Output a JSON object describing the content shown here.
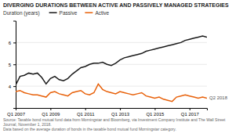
{
  "chart_data": {
    "type": "line",
    "title": "DIVERGING DURATIONS BETWEEN ACTIVE AND PASSIVELY MANAGED STRATEGIES",
    "ylabel": "Duration (years)",
    "annotation": "Q2 2018",
    "source": "Source: Taxable bond mutual fund data from Morningstar and Bloomberg, via Investment Company Institute and The Wall Street Journal, November 1, 2018.\nData based on the average duration of bonds in the taxable bond mutual fund Morningstar category.",
    "categories": [
      "Q1 2007",
      null,
      null,
      null,
      null,
      null,
      null,
      null,
      "Q1 2009",
      null,
      null,
      null,
      null,
      null,
      null,
      null,
      "Q1 2011",
      null,
      null,
      null,
      null,
      null,
      null,
      null,
      "Q1 2013",
      null,
      null,
      null,
      null,
      null,
      null,
      null,
      "Q1 2015",
      null,
      null,
      null,
      null,
      null,
      null,
      null,
      "Q1 2017",
      null,
      null,
      null,
      null
    ],
    "series": [
      {
        "name": "Passive",
        "color": "#1a1a1a",
        "values": [
          4.05,
          4.45,
          4.5,
          4.6,
          4.55,
          4.6,
          4.4,
          4.1,
          4.35,
          4.45,
          4.3,
          4.25,
          4.35,
          4.55,
          4.7,
          4.85,
          4.9,
          5.0,
          5.05,
          5.05,
          5.1,
          5.0,
          4.95,
          5.05,
          5.2,
          5.3,
          5.35,
          5.4,
          5.45,
          5.5,
          5.6,
          5.65,
          5.7,
          5.75,
          5.8,
          5.85,
          5.9,
          5.95,
          6.0,
          6.1,
          6.15,
          6.2,
          6.25,
          6.3,
          6.25
        ]
      },
      {
        "name": "Active",
        "color": "#E8610A",
        "values": [
          3.75,
          3.8,
          3.7,
          3.65,
          3.6,
          3.6,
          3.55,
          3.5,
          3.7,
          3.75,
          3.65,
          3.6,
          3.55,
          3.7,
          3.75,
          3.8,
          3.65,
          3.6,
          3.7,
          4.1,
          3.85,
          3.75,
          3.7,
          3.65,
          3.75,
          3.7,
          3.65,
          3.6,
          3.65,
          3.7,
          3.55,
          3.5,
          3.45,
          3.5,
          3.4,
          3.35,
          3.3,
          3.5,
          3.55,
          3.6,
          3.55,
          3.5,
          3.45,
          3.5,
          3.45
        ]
      }
    ],
    "ylim": [
      3,
      7
    ],
    "yticks": [
      4,
      5,
      6
    ],
    "grid": true,
    "legend": "upper left"
  }
}
